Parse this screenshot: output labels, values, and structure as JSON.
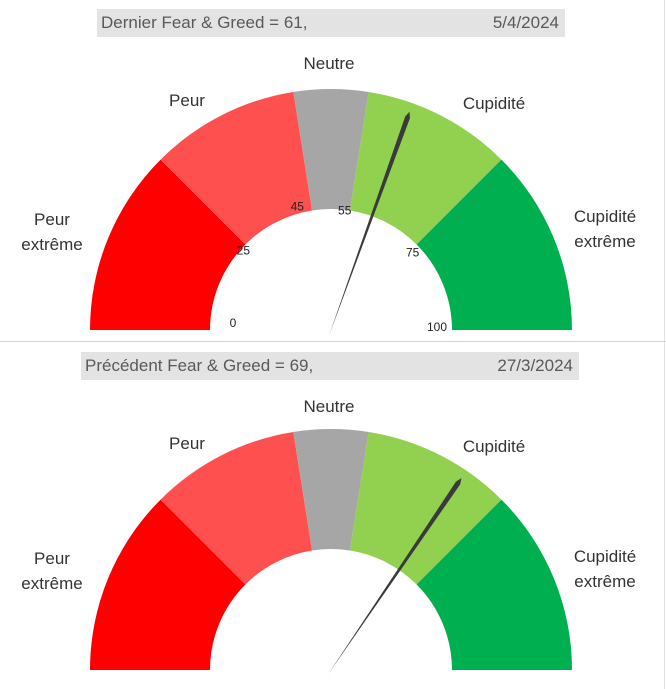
{
  "chart_data": [
    {
      "type": "gauge",
      "title_text": "Dernier Fear & Greed = 61,",
      "date": "5/4/2024",
      "value": 61,
      "range": [
        0,
        100
      ],
      "zones": [
        {
          "label": "Peur extrême",
          "from": 0,
          "to": 25,
          "color": "#ff0000"
        },
        {
          "label": "Peur",
          "from": 25,
          "to": 45,
          "color": "#ff5050"
        },
        {
          "label": "Neutre",
          "from": 45,
          "to": 55,
          "color": "#a6a6a6"
        },
        {
          "label": "Cupidité",
          "from": 55,
          "to": 75,
          "color": "#92d050"
        },
        {
          "label": "Cupidité extrême",
          "from": 75,
          "to": 100,
          "color": "#00b050"
        }
      ],
      "tick_labels": [
        "0",
        "25",
        "45",
        "55",
        "75",
        "100"
      ],
      "needle_color": "#3a3a3a"
    },
    {
      "type": "gauge",
      "title_text": "Précédent Fear & Greed = 69,",
      "date": "27/3/2024",
      "value": 69,
      "range": [
        0,
        100
      ],
      "zones": [
        {
          "label": "Peur extrême",
          "from": 0,
          "to": 25,
          "color": "#ff0000"
        },
        {
          "label": "Peur",
          "from": 25,
          "to": 45,
          "color": "#ff5050"
        },
        {
          "label": "Neutre",
          "from": 45,
          "to": 55,
          "color": "#a6a6a6"
        },
        {
          "label": "Cupidité",
          "from": 55,
          "to": 75,
          "color": "#92d050"
        },
        {
          "label": "Cupidité extrême",
          "from": 75,
          "to": 100,
          "color": "#00b050"
        }
      ],
      "tick_labels": [],
      "needle_color": "#3a3a3a"
    }
  ]
}
